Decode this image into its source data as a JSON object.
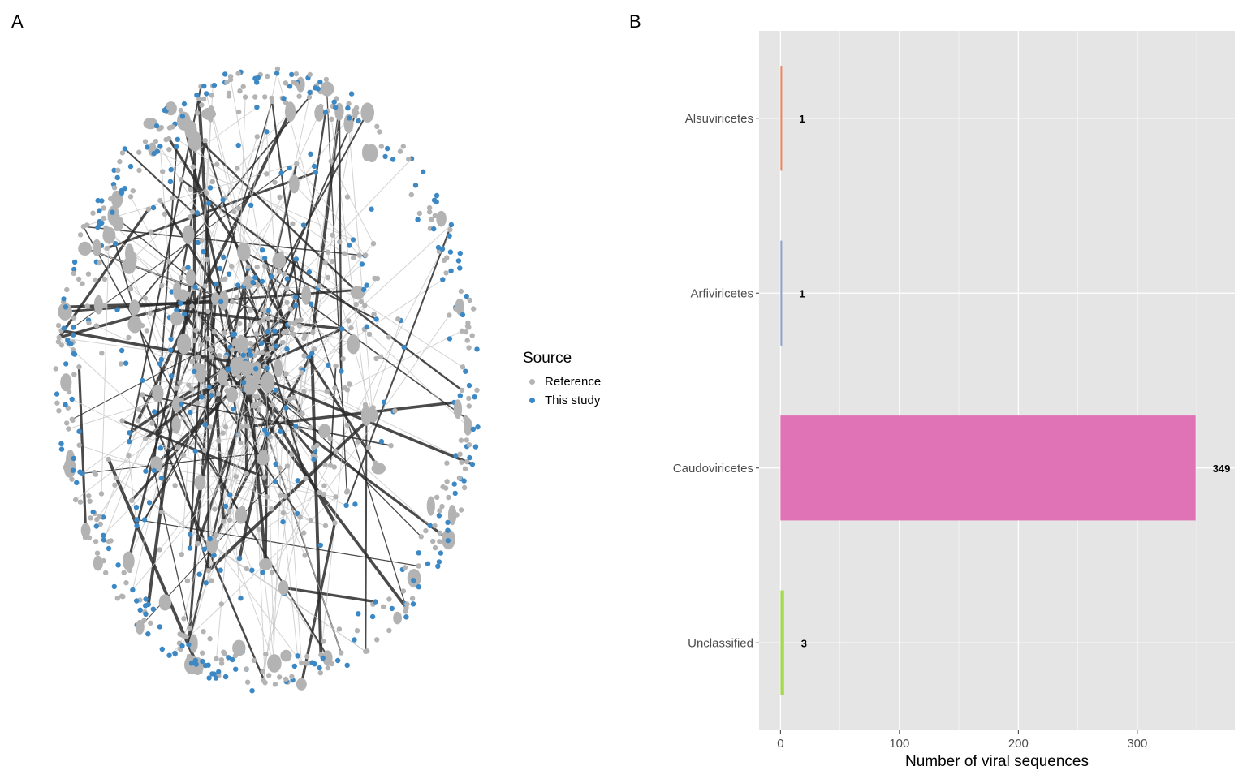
{
  "panels": {
    "a": "A",
    "b": "B"
  },
  "legend": {
    "title": "Source",
    "items": [
      {
        "label": "Reference",
        "color": "#b3b3b3"
      },
      {
        "label": "This study",
        "color": "#3c88c4"
      }
    ]
  },
  "network": {
    "node_colors": {
      "reference": "#b3b3b3",
      "this_study": "#3c88c4"
    },
    "edge_color": "#2b2b2b"
  },
  "chart_data": {
    "type": "bar",
    "orientation": "horizontal",
    "categories": [
      "Alsuviricetes",
      "Arfiviricetes",
      "Caudoviricetes",
      "Unclassified"
    ],
    "values": [
      1,
      1,
      349,
      3
    ],
    "data_labels": [
      "1",
      "1",
      "349",
      "3"
    ],
    "colors": [
      "#e9845c",
      "#8da0cb",
      "#e072b6",
      "#a6d854"
    ],
    "xlabel": "Number of viral sequences",
    "ylabel": "",
    "xlim": [
      -18,
      382
    ],
    "xticks": [
      0,
      100,
      200,
      300
    ],
    "grid": true,
    "legend": "none"
  }
}
